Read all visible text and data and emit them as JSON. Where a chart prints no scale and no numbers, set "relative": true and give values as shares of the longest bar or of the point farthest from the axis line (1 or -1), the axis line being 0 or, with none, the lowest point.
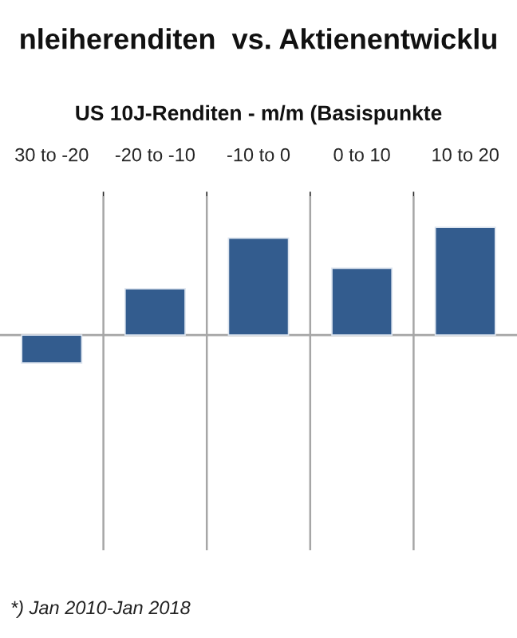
{
  "chart_data": {
    "type": "bar",
    "title": "nleiherenditen  vs. Aktienentwicklu",
    "subtitle": "US 10J-Renditen - m/m (Basispunkte",
    "categories": [
      "30 to -20",
      "-20 to -10",
      "-10 to 0",
      "0 to 10",
      "10 to 20"
    ],
    "values": [
      -0.26,
      0.43,
      0.9,
      0.62,
      1.0
    ],
    "color": "#335c8e",
    "relative": true,
    "grid": "x",
    "annotations": [
      "*) Jan 2010-Jan 2018"
    ]
  }
}
